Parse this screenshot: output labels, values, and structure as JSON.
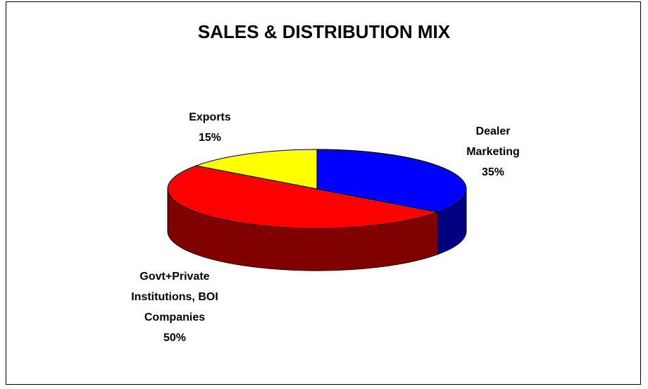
{
  "chart_data": {
    "type": "pie",
    "title": "SALES & DISTRIBUTION MIX",
    "categories": [
      "Dealer Marketing",
      "Govt+Private Institutions, BOI Companies",
      "Exports"
    ],
    "values": [
      35,
      50,
      15
    ],
    "value_labels": [
      "35%",
      "50%",
      "15%"
    ],
    "colors": [
      "#0000ff",
      "#ff0000",
      "#ffff00"
    ]
  }
}
